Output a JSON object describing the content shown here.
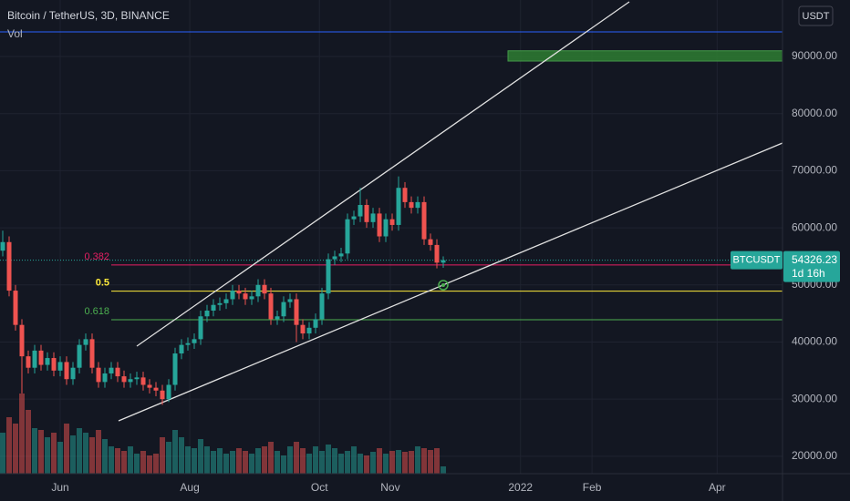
{
  "chart_data": {
    "type": "candlestick",
    "title": "Bitcoin / TetherUS, 3D, BINANCE",
    "volume_label": "Vol",
    "currency": "USDT",
    "symbol": "BTCUSDT",
    "countdown": "1d 16h",
    "up_color": "#26a69a",
    "down_color": "#ef5350",
    "open": [
      56000,
      57500,
      49000,
      43000,
      37500,
      35500,
      38500,
      36000,
      37200,
      35000,
      36500,
      33500,
      35500,
      39500,
      40500,
      35500,
      33000,
      34500,
      35500,
      34000,
      33000,
      33500,
      33800,
      32500,
      32000,
      31500,
      30000,
      32500,
      38000,
      39500,
      39800,
      40500,
      44500,
      45500,
      46500,
      46800,
      47500,
      49000,
      48500,
      47500,
      48000,
      50000,
      48500,
      44000,
      44500,
      47000,
      47500,
      43000,
      41500,
      42500,
      44000,
      48500,
      54500,
      55000,
      55500,
      61500,
      62000,
      64000,
      61000,
      62500,
      58500,
      61500,
      60500,
      67000,
      64500,
      63500,
      64500,
      58000,
      57000,
      53900
    ],
    "high": [
      59500,
      58500,
      50000,
      44000,
      38500,
      39500,
      39500,
      38200,
      38200,
      37500,
      37500,
      36500,
      40500,
      41500,
      41500,
      36500,
      35500,
      36500,
      36500,
      35000,
      34500,
      34800,
      34800,
      33500,
      33000,
      32500,
      33500,
      39000,
      40500,
      40800,
      41500,
      45500,
      46500,
      47500,
      47800,
      48500,
      50000,
      50000,
      49500,
      49000,
      51000,
      51000,
      49500,
      45500,
      48000,
      48500,
      48500,
      44000,
      43500,
      45000,
      49500,
      55500,
      56000,
      56500,
      62500,
      63000,
      67000,
      65000,
      63500,
      63500,
      62500,
      62500,
      69000,
      68000,
      65500,
      65500,
      65500,
      59000,
      58000,
      55000
    ],
    "low": [
      55000,
      48000,
      42000,
      31000,
      34500,
      34500,
      35000,
      35000,
      34000,
      34000,
      32500,
      32500,
      34500,
      38500,
      34500,
      32000,
      32000,
      33500,
      33000,
      32000,
      32000,
      32500,
      31500,
      31000,
      30500,
      29000,
      29500,
      31500,
      37000,
      38500,
      38800,
      39500,
      43500,
      44500,
      45500,
      45800,
      46500,
      47500,
      46500,
      46500,
      47000,
      47500,
      43000,
      43000,
      43500,
      46000,
      40000,
      40500,
      40500,
      41500,
      43000,
      47500,
      53500,
      54000,
      54500,
      60500,
      61000,
      60000,
      60000,
      57500,
      57500,
      59500,
      59500,
      63500,
      62500,
      62500,
      57000,
      56000,
      52900,
      53000
    ],
    "close": [
      57500,
      49000,
      43000,
      37500,
      35500,
      38500,
      36000,
      37200,
      35000,
      36500,
      33500,
      35500,
      39500,
      40500,
      35500,
      33000,
      34500,
      35500,
      34000,
      33000,
      33500,
      33800,
      32500,
      32000,
      31500,
      30000,
      32500,
      38000,
      39500,
      39800,
      40500,
      44500,
      45500,
      46500,
      46800,
      47500,
      49000,
      48500,
      47500,
      48000,
      50000,
      48500,
      44000,
      44500,
      47000,
      47500,
      43000,
      41500,
      42500,
      44000,
      48500,
      54500,
      55000,
      55500,
      61500,
      62000,
      64000,
      61000,
      62500,
      58500,
      61500,
      60500,
      67000,
      64500,
      63500,
      64500,
      58000,
      57000,
      53900,
      54326.23
    ],
    "volume": [
      45,
      62,
      55,
      88,
      70,
      50,
      48,
      40,
      45,
      35,
      55,
      42,
      50,
      45,
      40,
      48,
      38,
      30,
      28,
      25,
      30,
      22,
      25,
      20,
      22,
      40,
      35,
      48,
      40,
      30,
      28,
      38,
      30,
      25,
      28,
      22,
      25,
      28,
      25,
      22,
      28,
      30,
      35,
      25,
      20,
      30,
      35,
      28,
      22,
      30,
      25,
      32,
      28,
      22,
      25,
      30,
      22,
      20,
      24,
      28,
      22,
      25,
      26,
      24,
      25,
      30,
      28,
      26,
      28,
      8
    ],
    "ylim": [
      16950,
      99890
    ],
    "yticks": [
      {
        "value": 20000,
        "label": "20000.00"
      },
      {
        "value": 30000,
        "label": "30000.00"
      },
      {
        "value": 40000,
        "label": "40000.00"
      },
      {
        "value": 50000,
        "label": "50000.00"
      },
      {
        "value": 60000,
        "label": "60000.00"
      },
      {
        "value": 70000,
        "label": "70000.00"
      },
      {
        "value": 80000,
        "label": "80000.00"
      },
      {
        "value": 90000,
        "label": "90000.00"
      }
    ],
    "xlim": [
      -0.43,
      122.14
    ],
    "xticks": [
      {
        "value": 9,
        "label": "Jun"
      },
      {
        "value": 29.3,
        "label": "Aug"
      },
      {
        "value": 49.6,
        "label": "Oct"
      },
      {
        "value": 60.7,
        "label": "Nov"
      },
      {
        "value": 81.1,
        "label": "2022"
      },
      {
        "value": 92.3,
        "label": "Feb"
      },
      {
        "value": 111.9,
        "label": "Apr"
      }
    ],
    "grid": true,
    "fib_levels": [
      {
        "label": "0.382",
        "value": 53500,
        "color": "#e91e63"
      },
      {
        "label": "0.5",
        "value": 48900,
        "color": "#ffeb3b"
      },
      {
        "label": "0.618",
        "value": 43900,
        "color": "#4caf50"
      }
    ],
    "hline": {
      "value": 94300,
      "color": "#2962ff"
    },
    "zone": {
      "low": 89200,
      "high": 91000,
      "color": "#2e7d32"
    }
  }
}
